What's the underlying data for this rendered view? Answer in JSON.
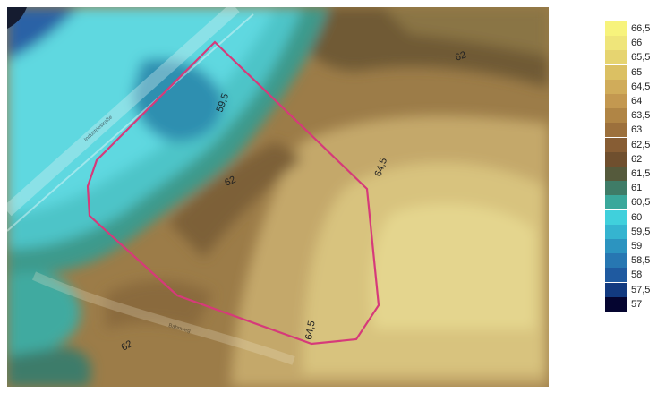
{
  "map": {
    "contour_labels": [
      "59,5",
      "62",
      "64,5",
      "62",
      "64,5",
      "62"
    ],
    "road_labels": [
      "Industriestraße",
      "Bahnweg"
    ],
    "boundary_color": "#d63a7a"
  },
  "legend": {
    "labels": [
      "66,5",
      "66",
      "65,5",
      "65",
      "64,5",
      "64",
      "63,5",
      "63",
      "62,5",
      "62",
      "61,5",
      "61",
      "60,5",
      "60",
      "59,5",
      "59",
      "58,5",
      "58",
      "57,5",
      "57"
    ],
    "colors": [
      "#f7f37c",
      "#efe57a",
      "#e6d470",
      "#dbc063",
      "#d0ac5a",
      "#c39850",
      "#b08545",
      "#9c703c",
      "#875d34",
      "#6f4f2e",
      "#555a3c",
      "#3f7c67",
      "#3aa89b",
      "#40d0dc",
      "#35b4d0",
      "#2c94c0",
      "#2777b2",
      "#1f5aa0",
      "#123a80",
      "#050530"
    ]
  }
}
